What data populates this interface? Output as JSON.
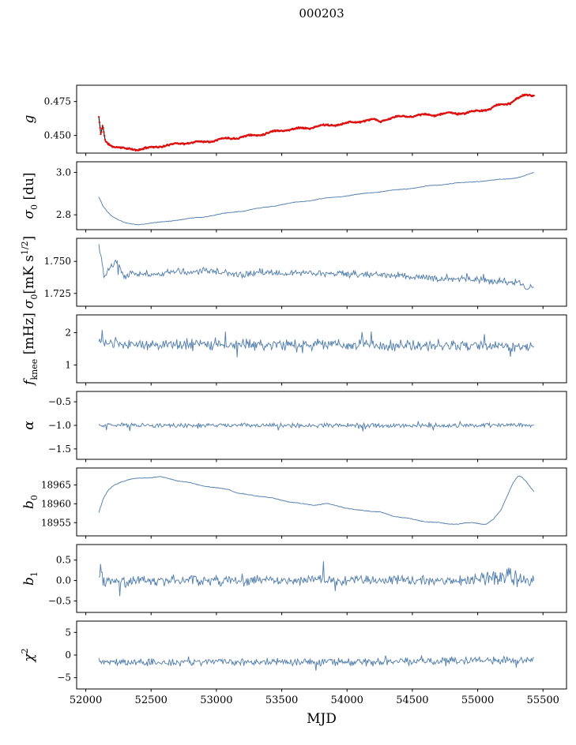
{
  "title": "000203",
  "xlabel": "MJD",
  "colors": {
    "line": "#5580ad",
    "marker": "#dd1111",
    "black_line": "#111111",
    "axis": "#000000"
  },
  "x_axis": {
    "lim": [
      51930,
      55680
    ],
    "data_range": [
      52100,
      55430
    ],
    "ticks": [
      52000,
      52500,
      53000,
      53500,
      54000,
      54500,
      55000,
      55500
    ],
    "tick_labels": [
      "52000",
      "52500",
      "53000",
      "53500",
      "54000",
      "54500",
      "55000",
      "55500"
    ]
  },
  "chart_data": [
    {
      "id": "g",
      "type": "scatter-line",
      "seed": 11,
      "n_points": 700,
      "ylabel_parts": [
        {
          "t": "g",
          "i": true
        }
      ],
      "yticks": [
        0.45,
        0.475
      ],
      "ytick_labels": [
        "0.450",
        "0.475"
      ],
      "ylim": [
        0.437,
        0.487
      ],
      "noise": 0.0007,
      "wiggle": {
        "amp": 0.0006,
        "period": 190
      },
      "trend": [
        [
          52100,
          0.463
        ],
        [
          52115,
          0.45
        ],
        [
          52130,
          0.4572
        ],
        [
          52150,
          0.4455
        ],
        [
          52200,
          0.4425
        ],
        [
          52300,
          0.44
        ],
        [
          52400,
          0.4398
        ],
        [
          52500,
          0.441
        ],
        [
          52600,
          0.4425
        ],
        [
          52700,
          0.4438
        ],
        [
          52800,
          0.4448
        ],
        [
          52900,
          0.4452
        ],
        [
          53000,
          0.4468
        ],
        [
          53100,
          0.4478
        ],
        [
          53200,
          0.449
        ],
        [
          53300,
          0.4502
        ],
        [
          53400,
          0.452
        ],
        [
          53500,
          0.4538
        ],
        [
          53600,
          0.4548
        ],
        [
          53700,
          0.4555
        ],
        [
          53800,
          0.457
        ],
        [
          53900,
          0.4578
        ],
        [
          54000,
          0.459
        ],
        [
          54100,
          0.4605
        ],
        [
          54200,
          0.4615
        ],
        [
          54250,
          0.4602
        ],
        [
          54300,
          0.462
        ],
        [
          54400,
          0.4638
        ],
        [
          54500,
          0.4645
        ],
        [
          54600,
          0.465
        ],
        [
          54700,
          0.4655
        ],
        [
          54800,
          0.4665
        ],
        [
          54900,
          0.4663
        ],
        [
          55000,
          0.468
        ],
        [
          55100,
          0.4698
        ],
        [
          55150,
          0.472
        ],
        [
          55200,
          0.473
        ],
        [
          55250,
          0.4742
        ],
        [
          55300,
          0.477
        ],
        [
          55350,
          0.479
        ],
        [
          55400,
          0.48
        ],
        [
          55430,
          0.4798
        ]
      ]
    },
    {
      "id": "sigma0-du",
      "type": "line",
      "seed": 22,
      "n_points": 600,
      "ylabel_parts": [
        {
          "t": "σ",
          "i": true
        },
        {
          "t": "0",
          "sub": true
        },
        {
          "t": " [du]"
        }
      ],
      "yticks": [
        2.8,
        3.0
      ],
      "ytick_labels": [
        "2.8",
        "3.0"
      ],
      "ylim": [
        2.73,
        3.05
      ],
      "noise": 0.0018,
      "wiggle": {
        "amp": 0.0015,
        "period": 260
      },
      "trend": [
        [
          52100,
          2.885
        ],
        [
          52130,
          2.845
        ],
        [
          52160,
          2.82
        ],
        [
          52200,
          2.795
        ],
        [
          52250,
          2.775
        ],
        [
          52300,
          2.762
        ],
        [
          52350,
          2.757
        ],
        [
          52400,
          2.755
        ],
        [
          52450,
          2.757
        ],
        [
          52500,
          2.76
        ],
        [
          52600,
          2.768
        ],
        [
          52700,
          2.775
        ],
        [
          52800,
          2.783
        ],
        [
          52900,
          2.79
        ],
        [
          53000,
          2.8
        ],
        [
          53100,
          2.81
        ],
        [
          53200,
          2.818
        ],
        [
          53300,
          2.828
        ],
        [
          53400,
          2.838
        ],
        [
          53500,
          2.848
        ],
        [
          53600,
          2.858
        ],
        [
          53700,
          2.866
        ],
        [
          53800,
          2.875
        ],
        [
          53900,
          2.882
        ],
        [
          54000,
          2.89
        ],
        [
          54100,
          2.898
        ],
        [
          54200,
          2.905
        ],
        [
          54300,
          2.912
        ],
        [
          54400,
          2.918
        ],
        [
          54500,
          2.926
        ],
        [
          54600,
          2.934
        ],
        [
          54700,
          2.94
        ],
        [
          54800,
          2.948
        ],
        [
          54900,
          2.952
        ],
        [
          55000,
          2.958
        ],
        [
          55100,
          2.962
        ],
        [
          55200,
          2.968
        ],
        [
          55300,
          2.975
        ],
        [
          55350,
          2.982
        ],
        [
          55400,
          2.992
        ],
        [
          55430,
          2.998
        ]
      ]
    },
    {
      "id": "sigma0-mks",
      "type": "line",
      "seed": 33,
      "n_points": 520,
      "ylabel_parts": [
        {
          "t": "σ",
          "i": true
        },
        {
          "t": "0",
          "sub": true
        },
        {
          "t": "[mK s"
        },
        {
          "t": "1/2",
          "sup": true
        },
        {
          "t": "]"
        }
      ],
      "yticks": [
        1.725,
        1.75
      ],
      "ytick_labels": [
        "1.725",
        "1.750"
      ],
      "ylim": [
        1.715,
        1.768
      ],
      "noise": 0.0032,
      "spike_prob": 0.03,
      "spike_scale": 1.7,
      "trend": [
        [
          52100,
          1.7625
        ],
        [
          52120,
          1.752
        ],
        [
          52140,
          1.7385
        ],
        [
          52160,
          1.739
        ],
        [
          52180,
          1.745
        ],
        [
          52200,
          1.7465
        ],
        [
          52230,
          1.7495
        ],
        [
          52260,
          1.745
        ],
        [
          52300,
          1.737
        ],
        [
          52340,
          1.742
        ],
        [
          52400,
          1.7405
        ],
        [
          52500,
          1.7395
        ],
        [
          52600,
          1.741
        ],
        [
          52700,
          1.742
        ],
        [
          52800,
          1.7415
        ],
        [
          52900,
          1.7425
        ],
        [
          53000,
          1.742
        ],
        [
          53100,
          1.7405
        ],
        [
          53200,
          1.7385
        ],
        [
          53300,
          1.7415
        ],
        [
          53400,
          1.742
        ],
        [
          53500,
          1.7395
        ],
        [
          53600,
          1.7415
        ],
        [
          53700,
          1.7405
        ],
        [
          53800,
          1.7415
        ],
        [
          53900,
          1.74
        ],
        [
          54000,
          1.7405
        ],
        [
          54100,
          1.7395
        ],
        [
          54200,
          1.74
        ],
        [
          54300,
          1.7385
        ],
        [
          54400,
          1.739
        ],
        [
          54500,
          1.7375
        ],
        [
          54600,
          1.738
        ],
        [
          54700,
          1.7365
        ],
        [
          54800,
          1.737
        ],
        [
          54900,
          1.7355
        ],
        [
          55000,
          1.736
        ],
        [
          55100,
          1.7345
        ],
        [
          55200,
          1.735
        ],
        [
          55300,
          1.733
        ],
        [
          55350,
          1.732
        ],
        [
          55400,
          1.729
        ],
        [
          55430,
          1.7285
        ]
      ]
    },
    {
      "id": "fknee",
      "type": "line",
      "seed": 44,
      "n_points": 520,
      "ylabel_parts": [
        {
          "t": "f",
          "i": true
        },
        {
          "t": "knee",
          "sub": true
        },
        {
          "t": " [mHz]"
        }
      ],
      "yticks": [
        1,
        2
      ],
      "ytick_labels": [
        "1",
        "2"
      ],
      "ylim": [
        0.45,
        2.55
      ],
      "noise": 0.21,
      "spike_prob": 0.05,
      "spike_scale": 2.2,
      "trend": [
        [
          52100,
          1.72
        ],
        [
          52300,
          1.63
        ],
        [
          52600,
          1.62
        ],
        [
          53000,
          1.65
        ],
        [
          53500,
          1.62
        ],
        [
          54000,
          1.63
        ],
        [
          54500,
          1.6
        ],
        [
          55000,
          1.62
        ],
        [
          55300,
          1.58
        ],
        [
          55430,
          1.6
        ]
      ]
    },
    {
      "id": "alpha",
      "type": "line",
      "seed": 55,
      "n_points": 520,
      "ylabel_parts": [
        {
          "t": "α",
          "i": true
        }
      ],
      "yticks": [
        -1.5,
        -1.0,
        -0.5
      ],
      "ytick_labels": [
        "−1.5",
        "−1.0",
        "−0.5"
      ],
      "ylim": [
        -1.72,
        -0.28
      ],
      "noise": 0.055,
      "spike_prob": 0.05,
      "spike_scale": 1.8,
      "trend": [
        [
          52100,
          -0.99
        ],
        [
          52500,
          -1.0
        ],
        [
          53000,
          -0.995
        ],
        [
          53500,
          -1.0
        ],
        [
          54000,
          -1.0
        ],
        [
          54500,
          -1.005
        ],
        [
          55000,
          -1.0
        ],
        [
          55430,
          -0.99
        ]
      ]
    },
    {
      "id": "b0",
      "type": "line",
      "seed": 66,
      "n_points": 620,
      "ylabel_parts": [
        {
          "t": "b",
          "i": true
        },
        {
          "t": "0",
          "sub": true
        }
      ],
      "yticks": [
        18955,
        18960,
        18965
      ],
      "ytick_labels": [
        "18955",
        "18960",
        "18965"
      ],
      "ylim": [
        18951.5,
        18969.5
      ],
      "noise": 0.11,
      "wiggle": {
        "amp": 0.09,
        "period": 210
      },
      "trend": [
        [
          52100,
          18957.8
        ],
        [
          52130,
          18961.0
        ],
        [
          52170,
          18963.5
        ],
        [
          52220,
          18965.0
        ],
        [
          52280,
          18966.0
        ],
        [
          52350,
          18966.6
        ],
        [
          52420,
          18966.8
        ],
        [
          52500,
          18967.0
        ],
        [
          52560,
          18967.2
        ],
        [
          52620,
          18966.8
        ],
        [
          52700,
          18966.2
        ],
        [
          52800,
          18965.5
        ],
        [
          52900,
          18964.8
        ],
        [
          53000,
          18964.2
        ],
        [
          53100,
          18963.8
        ],
        [
          53150,
          18963.0
        ],
        [
          53250,
          18962.3
        ],
        [
          53350,
          18962.0
        ],
        [
          53450,
          18961.3
        ],
        [
          53550,
          18960.6
        ],
        [
          53650,
          18960.0
        ],
        [
          53750,
          18959.7
        ],
        [
          53850,
          18960.0
        ],
        [
          53950,
          18959.3
        ],
        [
          54050,
          18958.4
        ],
        [
          54150,
          18958.2
        ],
        [
          54250,
          18957.8
        ],
        [
          54350,
          18956.8
        ],
        [
          54450,
          18956.2
        ],
        [
          54550,
          18955.6
        ],
        [
          54650,
          18955.1
        ],
        [
          54750,
          18954.8
        ],
        [
          54850,
          18954.6
        ],
        [
          54950,
          18955.0
        ],
        [
          55000,
          18954.9
        ],
        [
          55060,
          18954.5
        ],
        [
          55120,
          18955.8
        ],
        [
          55180,
          18958.5
        ],
        [
          55230,
          18962.5
        ],
        [
          55270,
          18965.5
        ],
        [
          55310,
          18967.3
        ],
        [
          55340,
          18967.0
        ],
        [
          55380,
          18965.5
        ],
        [
          55430,
          18963.3
        ]
      ]
    },
    {
      "id": "b1",
      "type": "line",
      "seed": 77,
      "n_points": 520,
      "ylabel_parts": [
        {
          "t": "b",
          "i": true
        },
        {
          "t": "1",
          "sub": true
        }
      ],
      "yticks": [
        -0.5,
        0.0,
        0.5
      ],
      "ytick_labels": [
        "−0.5",
        "0.0",
        "0.5"
      ],
      "ylim": [
        -0.78,
        0.88
      ],
      "noise": [
        [
          52100,
          0.32
        ],
        [
          52250,
          0.22
        ],
        [
          52500,
          0.16
        ],
        [
          53000,
          0.15
        ],
        [
          54000,
          0.15
        ],
        [
          54700,
          0.14
        ],
        [
          55000,
          0.16
        ],
        [
          55150,
          0.28
        ],
        [
          55250,
          0.3
        ],
        [
          55350,
          0.18
        ],
        [
          55430,
          0.14
        ]
      ],
      "spike_prob": 0.04,
      "spike_scale": 1.8,
      "trend": [
        [
          52100,
          0.25
        ],
        [
          52150,
          0.05
        ],
        [
          52200,
          0.0
        ],
        [
          52400,
          0.0
        ],
        [
          53000,
          0.0
        ],
        [
          54000,
          0.0
        ],
        [
          54800,
          0.0
        ],
        [
          55100,
          0.05
        ],
        [
          55200,
          0.1
        ],
        [
          55300,
          0.0
        ],
        [
          55430,
          -0.05
        ]
      ]
    },
    {
      "id": "chi2",
      "type": "line",
      "seed": 88,
      "n_points": 520,
      "ylabel_parts": [
        {
          "t": "χ",
          "i": true
        },
        {
          "t": "2",
          "sup": true
        }
      ],
      "yticks": [
        -5,
        0,
        5
      ],
      "ytick_labels": [
        "−5",
        "0",
        "5"
      ],
      "ylim": [
        -7.5,
        7.5
      ],
      "noise": 1.0,
      "spike_prob": 0.05,
      "spike_scale": 1.8,
      "trend": [
        [
          52100,
          -1.2
        ],
        [
          52300,
          -1.8
        ],
        [
          52600,
          -1.6
        ],
        [
          53000,
          -1.5
        ],
        [
          53500,
          -1.5
        ],
        [
          54000,
          -1.5
        ],
        [
          54500,
          -1.4
        ],
        [
          55000,
          -1.2
        ],
        [
          55430,
          -1.1
        ]
      ]
    }
  ]
}
